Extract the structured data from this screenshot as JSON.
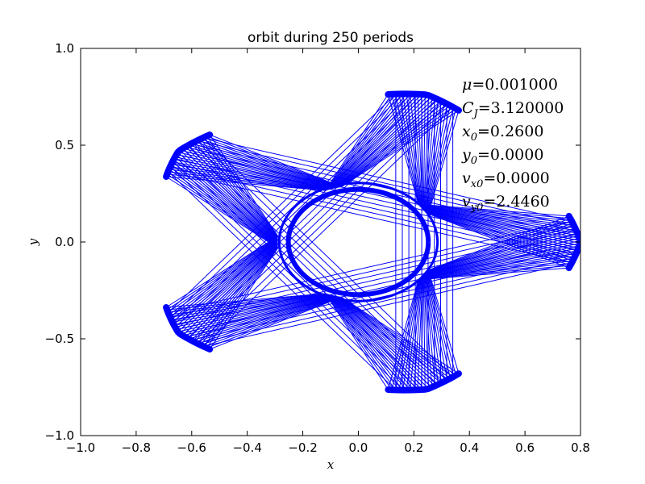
{
  "chart_data": {
    "type": "line",
    "title": "orbit during 250 periods",
    "xlabel": "x",
    "ylabel": "y",
    "xlim": [
      -1.0,
      0.8
    ],
    "ylim": [
      -1.0,
      1.0
    ],
    "xticks": [
      -1.0,
      -0.8,
      -0.6,
      -0.4,
      -0.2,
      0.0,
      0.2,
      0.4,
      0.6,
      0.8
    ],
    "xtick_labels": [
      "−1.0",
      "−0.8",
      "−0.6",
      "−0.4",
      "−0.2",
      "0.0",
      "0.2",
      "0.4",
      "0.6",
      "0.8"
    ],
    "yticks": [
      -1.0,
      -0.5,
      0.0,
      0.5,
      1.0
    ],
    "ytick_labels": [
      "−1.0",
      "−0.5",
      "0.0",
      "0.5",
      "1.0"
    ],
    "grid": false,
    "series_color": "#0000ff",
    "annotations": [
      "μ=0.001000",
      "C_J=3.120000",
      "x_0=0.2600",
      "y_0=0.0000",
      "v_x0=0.0000",
      "v_y0=2.4460"
    ],
    "orbit": {
      "inner_radius": 0.26,
      "outer_radius": 0.8,
      "lobes": 5,
      "outer_vertex_angles_deg": [
        0,
        72,
        144,
        216,
        288
      ],
      "periods": 250
    }
  }
}
